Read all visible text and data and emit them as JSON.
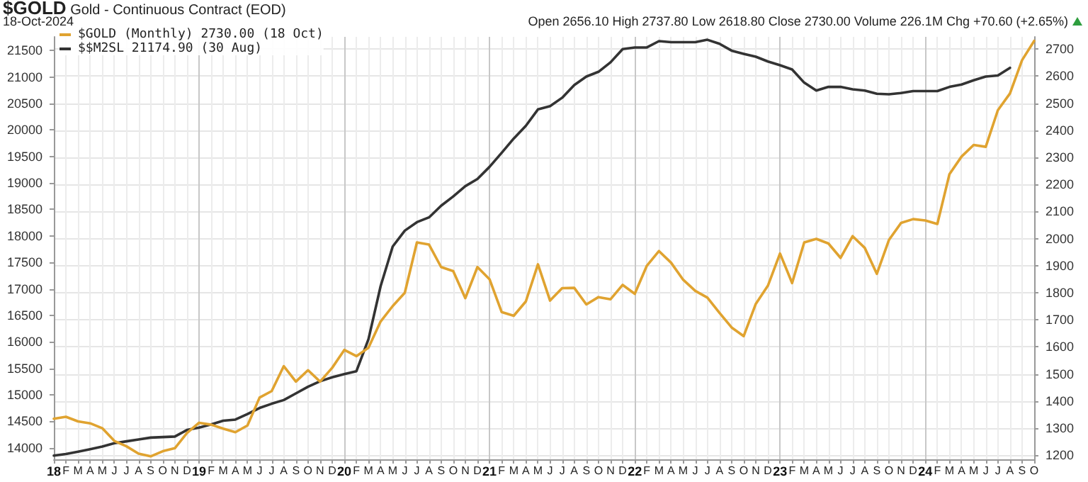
{
  "chart_data": {
    "type": "line",
    "title": "$GOLD Gold - Continuous Contract (EOD)",
    "subtitle": "18-Oct-2024",
    "annotations": [
      "Open 2656.10 High 2737.80 Low 2618.80 Close 2730.00 Volume 226.1M Chg +70.60 (+2.65%)"
    ],
    "categories": [
      "18",
      "F",
      "M",
      "A",
      "M",
      "J",
      "J",
      "A",
      "S",
      "O",
      "N",
      "D",
      "19",
      "F",
      "M",
      "A",
      "M",
      "J",
      "J",
      "A",
      "S",
      "O",
      "N",
      "D",
      "20",
      "F",
      "M",
      "A",
      "M",
      "J",
      "J",
      "A",
      "S",
      "O",
      "N",
      "D",
      "21",
      "F",
      "M",
      "A",
      "M",
      "J",
      "J",
      "A",
      "S",
      "O",
      "N",
      "D",
      "22",
      "F",
      "M",
      "A",
      "M",
      "J",
      "J",
      "A",
      "S",
      "O",
      "N",
      "D",
      "23",
      "F",
      "M",
      "A",
      "M",
      "J",
      "J",
      "A",
      "S",
      "O",
      "N",
      "D",
      "24",
      "F",
      "M",
      "A",
      "M",
      "J",
      "J",
      "A",
      "S",
      "O"
    ],
    "series": [
      {
        "name": "$GOLD (Monthly) 2730.00 (18 Oct)",
        "color": "#e0a330",
        "axis": "y2",
        "values": [
          1335,
          1342,
          1325,
          1318,
          1300,
          1253,
          1233,
          1206,
          1196,
          1215,
          1226,
          1282,
          1320,
          1313,
          1298,
          1285,
          1310,
          1413,
          1437,
          1529,
          1472,
          1514,
          1472,
          1523,
          1589,
          1566,
          1597,
          1694,
          1751,
          1800,
          1986,
          1978,
          1895,
          1880,
          1780,
          1895,
          1850,
          1729,
          1715,
          1768,
          1905,
          1771,
          1817,
          1818,
          1757,
          1784,
          1776,
          1829,
          1796,
          1900,
          1954,
          1911,
          1848,
          1807,
          1782,
          1726,
          1672,
          1640,
          1759,
          1826,
          1945,
          1836,
          1986,
          1999,
          1982,
          1929,
          2009,
          1966,
          1870,
          1995,
          2058,
          2072,
          2067,
          2054,
          2238,
          2303,
          2346,
          2339,
          2474,
          2536,
          2659,
          2730
        ]
      },
      {
        "name": "$$M2SL 21174.90 (30 Aug)",
        "color": "#333333",
        "values": [
          13850,
          13880,
          13925,
          13970,
          14020,
          14085,
          14120,
          14155,
          14190,
          14200,
          14210,
          14335,
          14380,
          14440,
          14510,
          14530,
          14635,
          14750,
          14830,
          14900,
          15025,
          15150,
          15255,
          15330,
          15390,
          15445,
          16050,
          17050,
          17800,
          18100,
          18260,
          18350,
          18570,
          18745,
          18940,
          19075,
          19305,
          19570,
          19840,
          20080,
          20390,
          20450,
          20610,
          20850,
          21010,
          21100,
          21280,
          21530,
          21560,
          21560,
          21680,
          21660,
          21660,
          21660,
          21705,
          21630,
          21500,
          21440,
          21385,
          21295,
          21225,
          21145,
          20895,
          20745,
          20815,
          20815,
          20770,
          20745,
          20685,
          20675,
          20700,
          20735,
          20735,
          20735,
          20815,
          20860,
          20940,
          21010,
          21030,
          21175,
          null,
          null
        ]
      }
    ],
    "ylim": [
      13780,
      21760
    ],
    "yticks": [
      14000,
      14500,
      15000,
      15500,
      16000,
      16500,
      17000,
      17500,
      18000,
      18500,
      19000,
      19500,
      20000,
      20500,
      21000,
      21500
    ],
    "y2lim": [
      1185,
      2745
    ],
    "y2ticks": [
      1200,
      1300,
      1400,
      1500,
      1600,
      1700,
      1800,
      1900,
      2000,
      2100,
      2200,
      2300,
      2400,
      2500,
      2600,
      2700
    ],
    "grid": true,
    "legend": "top left"
  }
}
